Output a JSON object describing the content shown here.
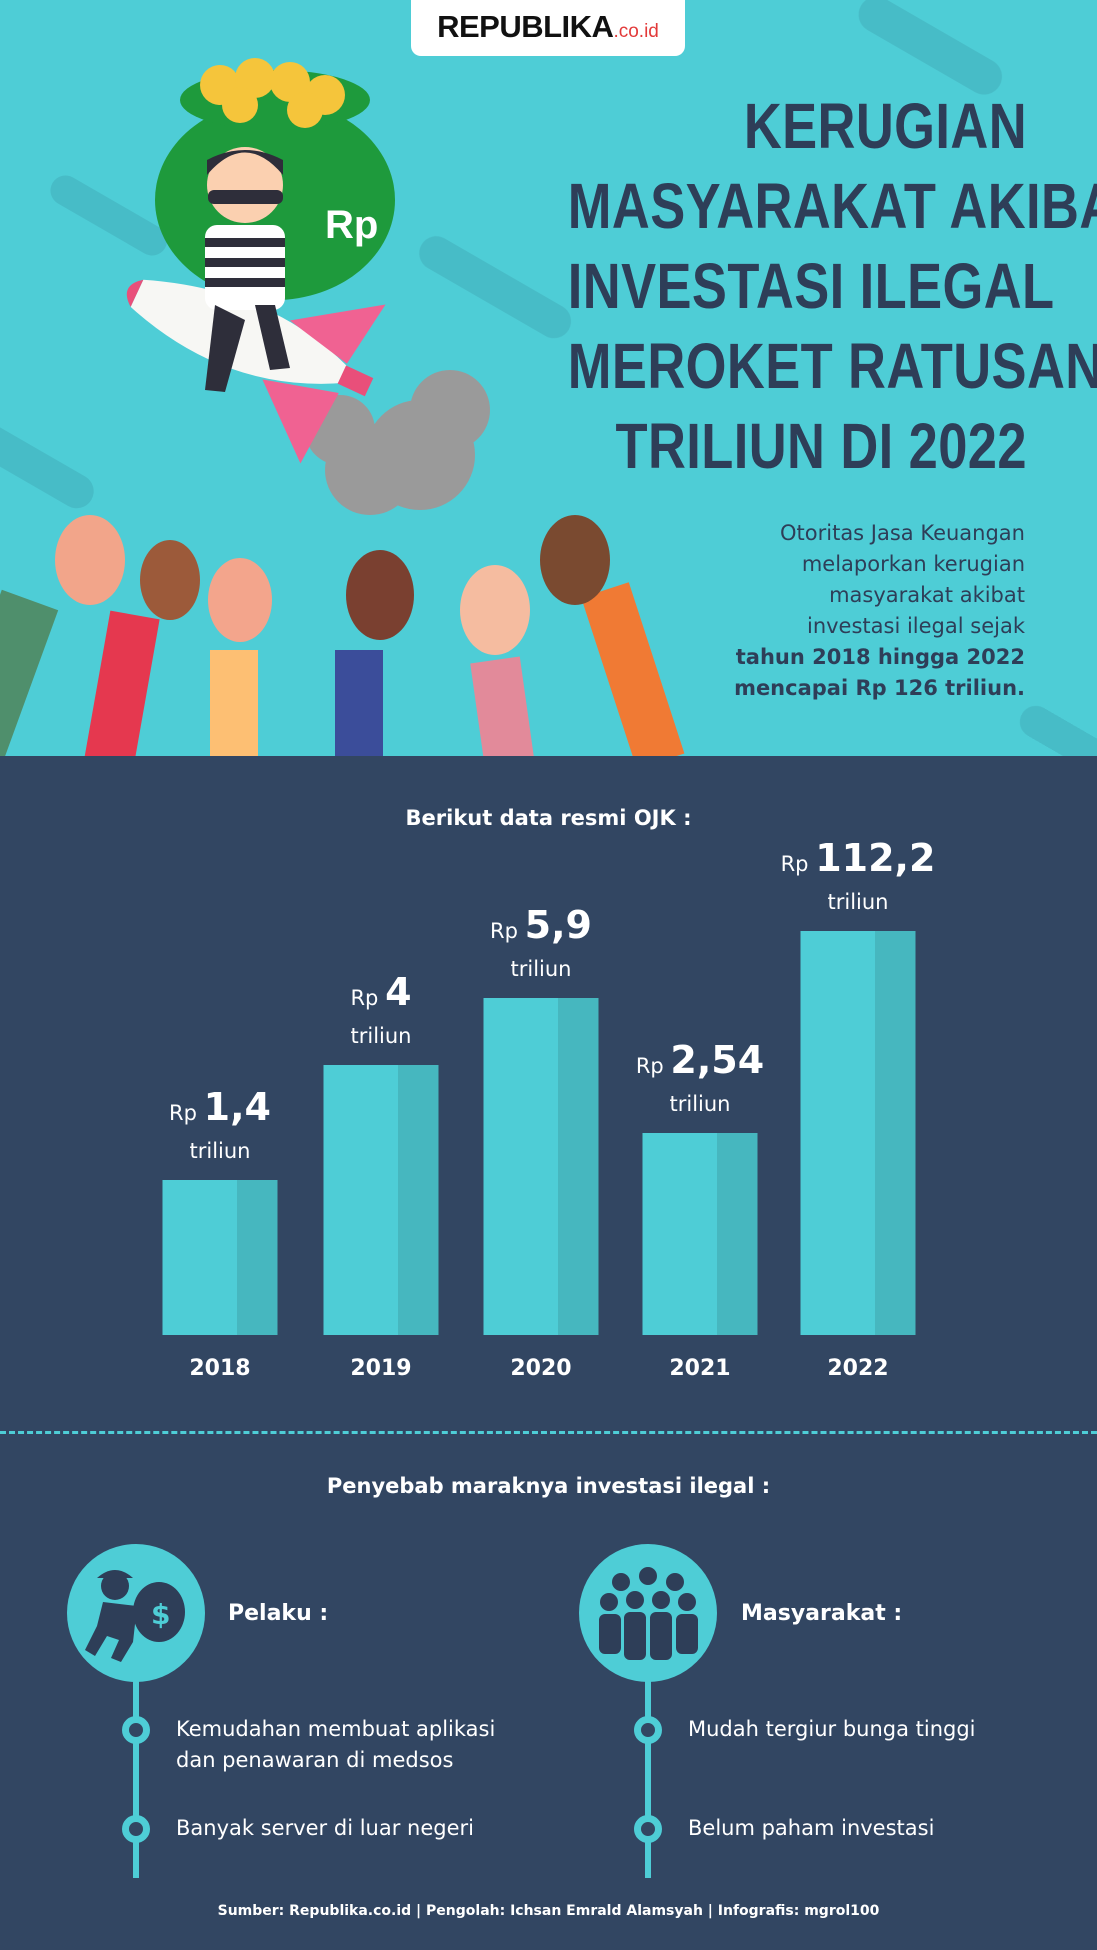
{
  "header": {
    "logo_main": "REPUBLIKA",
    "logo_sub": ".co.id",
    "title_lines": [
      "KERUGIAN",
      "MASYARAKAT AKIBAT",
      "INVESTASI ILEGAL",
      "MEROKET RATUSAN",
      "TRILIUN DI 2022"
    ],
    "intro_lines": [
      "Otoritas Jasa Keuangan",
      "melaporkan kerugian",
      "masyarakat akibat",
      "investasi ilegal sejak"
    ],
    "intro_bold_lines": [
      "tahun 2018 hingga 2022",
      "mencapai Rp 126 triliun."
    ],
    "illustration_money_label": "Rp"
  },
  "colors": {
    "top_bg": "#4ecdd6",
    "bottom_bg": "#324662",
    "title": "#2e3e58",
    "bar_light": "#4ecdd6",
    "bar_dark": "#46b7bf"
  },
  "chart_data": {
    "type": "bar",
    "title": "Berikut data resmi OJK :",
    "categories": [
      "2018",
      "2019",
      "2020",
      "2021",
      "2022"
    ],
    "values": [
      1.4,
      4,
      5.9,
      2.54,
      112.2
    ],
    "value_labels": [
      "1,4",
      "4",
      "5,9",
      "2,54",
      "112,2"
    ],
    "label_prefix": "Rp",
    "label_unit": "triliun",
    "xlabel": "",
    "ylabel": ""
  },
  "causes": {
    "title": "Penyebab maraknya investasi ilegal :",
    "pelaku": {
      "heading": "Pelaku :",
      "icon": "thief-icon",
      "items": [
        "Kemudahan membuat aplikasi\ndan penawaran di medsos",
        "Banyak server di luar negeri"
      ]
    },
    "masyarakat": {
      "heading": "Masyarakat :",
      "icon": "crowd-icon",
      "items": [
        "Mudah tergiur bunga tinggi",
        "Belum paham investasi"
      ]
    }
  },
  "footer": {
    "source": "Sumber: Republika.co.id  | Pengolah:  Ichsan Emrald Alamsyah | Infografis: mgrol100"
  }
}
